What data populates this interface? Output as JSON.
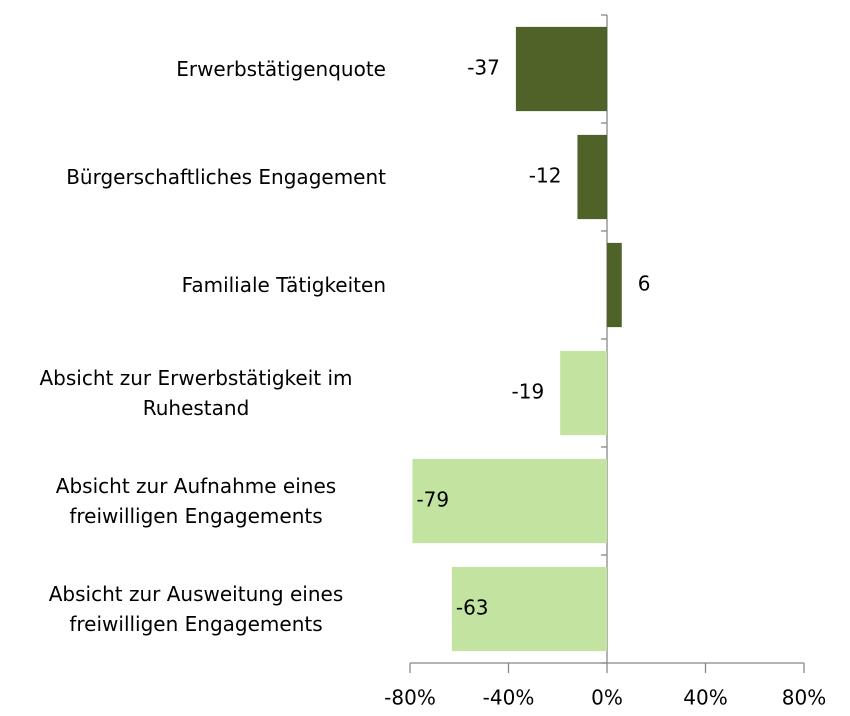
{
  "chart_data": {
    "type": "bar",
    "orientation": "horizontal",
    "categories": [
      "Erwerbstätigenquote",
      "Bürgerschaftliches Engagement",
      "Familiale Tätigkeiten",
      "Absicht zur Erwerbstätigkeit im Ruhestand",
      "Absicht zur Aufnahme eines freiwilligen Engagements",
      "Absicht zur Ausweitung eines freiwilligen Engagements"
    ],
    "values": [
      -37,
      -12,
      6,
      -19,
      -79,
      -63
    ],
    "colors": [
      "#4f6228",
      "#4f6228",
      "#4f6228",
      "#c3e3a0",
      "#c3e3a0",
      "#c3e3a0"
    ],
    "xlim": [
      -80,
      80
    ],
    "xticks": [
      {
        "value": -80,
        "label": "-80%"
      },
      {
        "value": -40,
        "label": "-40%"
      },
      {
        "value": 0,
        "label": "0%"
      },
      {
        "value": 40,
        "label": "40%"
      },
      {
        "value": 80,
        "label": "80%"
      }
    ],
    "grid": false
  }
}
